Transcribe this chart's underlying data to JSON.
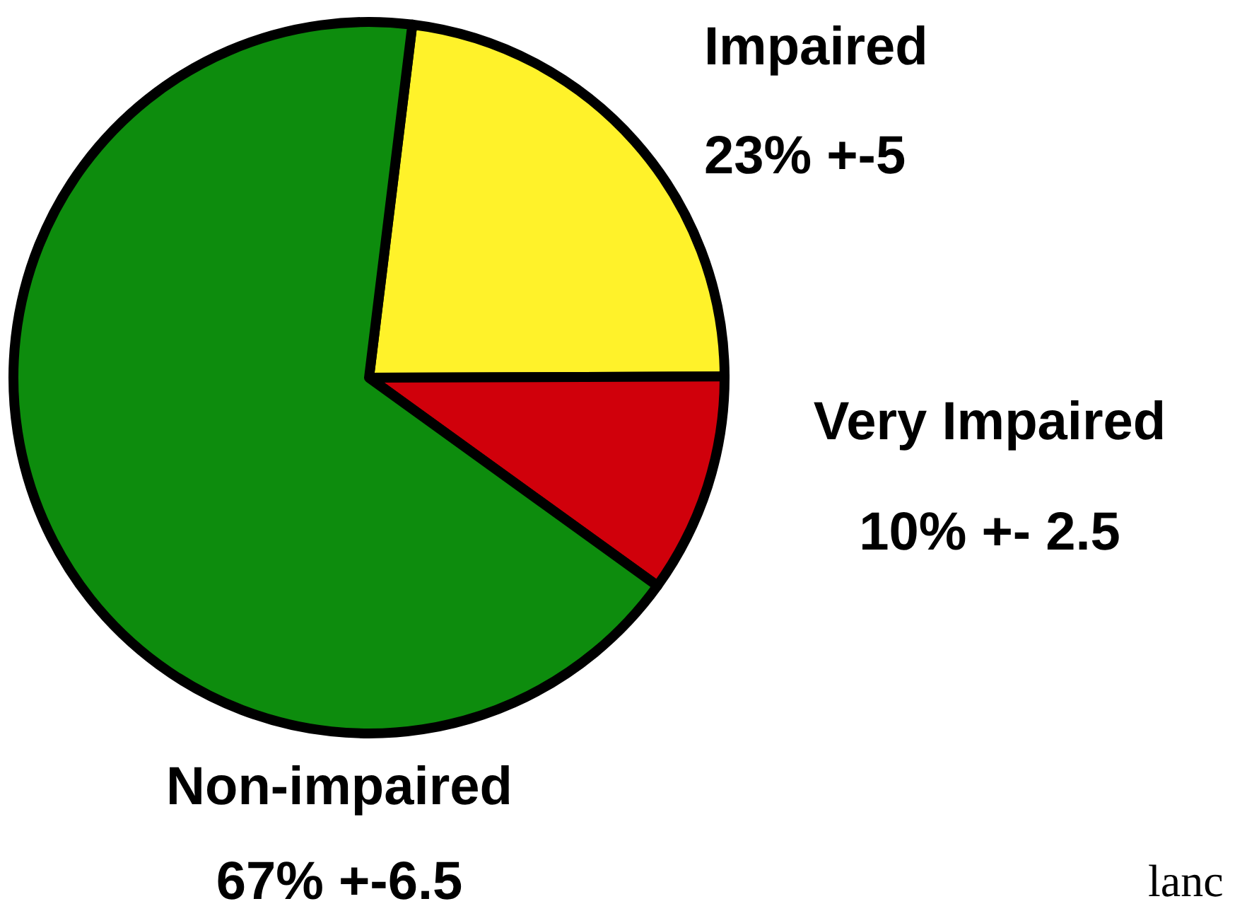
{
  "chart_data": {
    "type": "pie",
    "categories": [
      "Impaired",
      "Very Impaired",
      "Non-impaired"
    ],
    "values": [
      23,
      10,
      67
    ],
    "colors": [
      "#fff22a",
      "#d0000b",
      "#0d8c0d"
    ],
    "value_labels": [
      "23% +-5",
      "10% +- 2.5",
      "67% +-6.5"
    ],
    "legend": false,
    "annotations": [
      "lanc"
    ]
  }
}
